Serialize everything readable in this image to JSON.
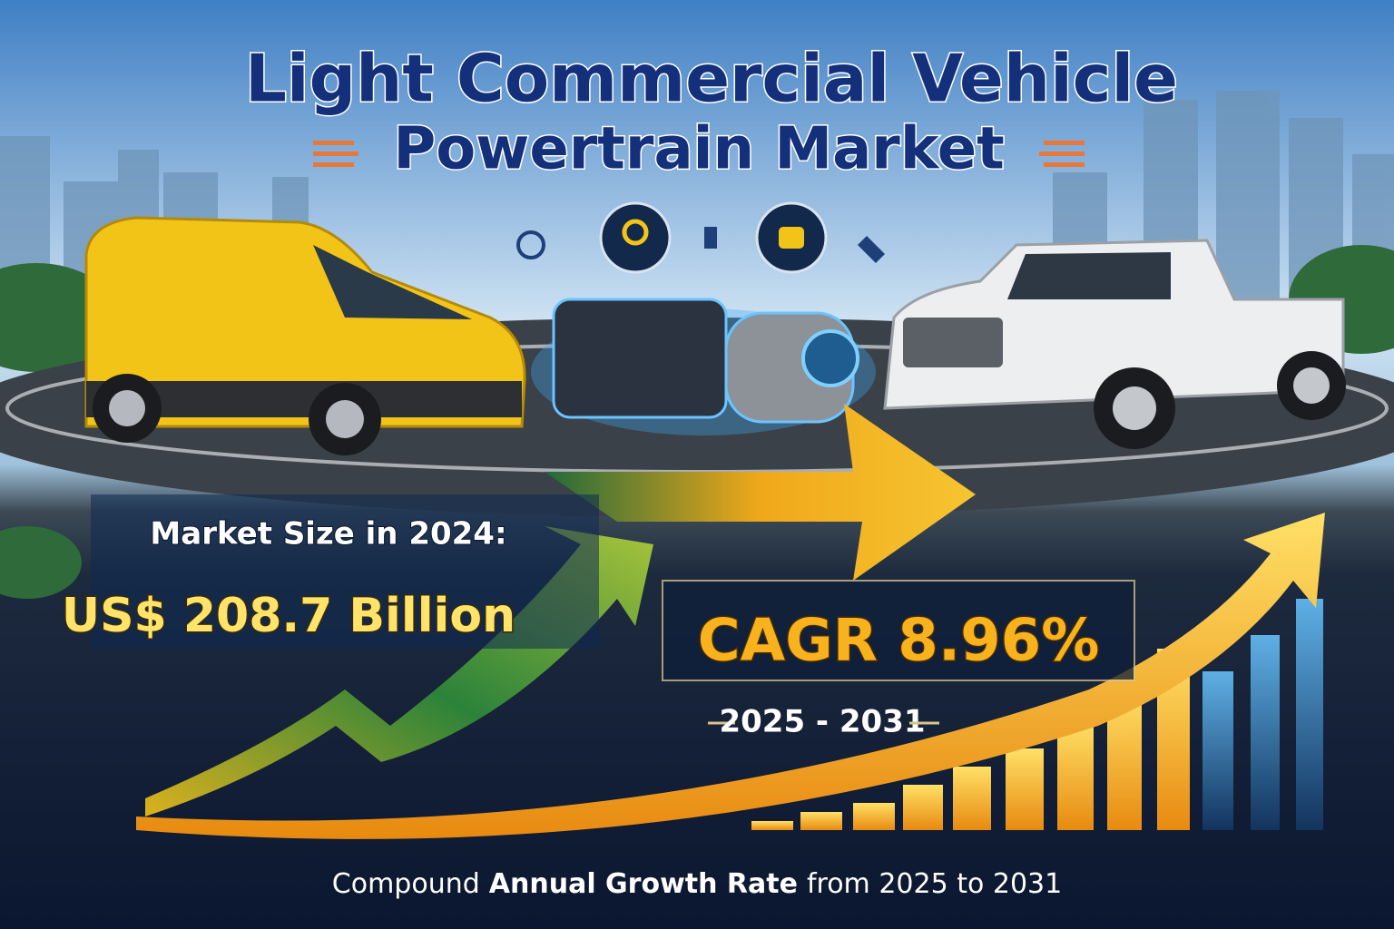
{
  "header": {
    "title_line1": "Light Commercial Vehicle",
    "title_line2": "Powertrain Market"
  },
  "market_size": {
    "label": "Market Size in 2024:",
    "value": "US$ 208.7 Billion"
  },
  "cagr": {
    "label": "CAGR 8.96%",
    "period": "2025 - 2031"
  },
  "footer": {
    "parts": [
      "Compound",
      "Annual Growth Rate",
      "from 2025 to 2031"
    ]
  }
}
